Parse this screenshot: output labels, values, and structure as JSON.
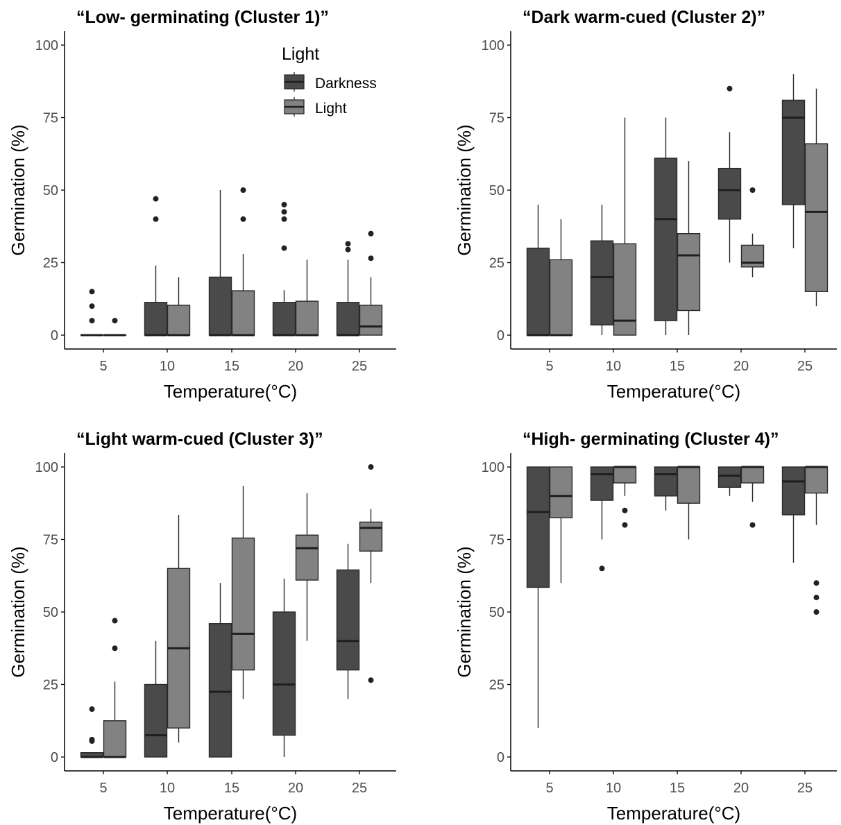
{
  "colors": {
    "darkness": "#4a4a4a",
    "light": "#828282",
    "box_stroke": "#2a2a2a",
    "axis": "#000000",
    "tick_label": "#4d4d4d",
    "text": "#000000"
  },
  "legend": {
    "title": "Light",
    "items": [
      {
        "label": "Darkness",
        "color_key": "darkness"
      },
      {
        "label": "Light",
        "color_key": "light"
      }
    ],
    "placement": "inside top-right of first panel"
  },
  "chart_data": [
    {
      "type": "boxplot",
      "title": "“Low- germinating (Cluster 1)”",
      "xlabel": "Temperature(°C)",
      "ylabel": "Germination (%)",
      "categories": [
        "5",
        "10",
        "15",
        "20",
        "25"
      ],
      "ylim": [
        0,
        100
      ],
      "yticks": [
        0,
        25,
        50,
        75,
        100
      ],
      "grid": false,
      "series": [
        {
          "name": "Darkness",
          "color_key": "darkness",
          "boxes": [
            {
              "whisker_low": 0,
              "q1": 0,
              "median": 0,
              "q3": 0,
              "whisker_high": 0,
              "outliers": [
                5,
                10,
                15
              ]
            },
            {
              "whisker_low": 0,
              "q1": 0,
              "median": 0,
              "q3": 11.3,
              "whisker_high": 24,
              "outliers": [
                40,
                47
              ]
            },
            {
              "whisker_low": 0,
              "q1": 0,
              "median": 0,
              "q3": 20,
              "whisker_high": 50,
              "outliers": []
            },
            {
              "whisker_low": 0,
              "q1": 0,
              "median": 0,
              "q3": 11.3,
              "whisker_high": 15.5,
              "outliers": [
                30,
                40,
                42.5,
                45
              ]
            },
            {
              "whisker_low": 0,
              "q1": 0,
              "median": 0,
              "q3": 11.3,
              "whisker_high": 26,
              "outliers": [
                29.5,
                31.5
              ]
            }
          ]
        },
        {
          "name": "Light",
          "color_key": "light",
          "boxes": [
            {
              "whisker_low": 0,
              "q1": 0,
              "median": 0,
              "q3": 0,
              "whisker_high": 0,
              "outliers": [
                5
              ]
            },
            {
              "whisker_low": 0,
              "q1": 0,
              "median": 0,
              "q3": 10.3,
              "whisker_high": 20,
              "outliers": []
            },
            {
              "whisker_low": 0,
              "q1": 0,
              "median": 0,
              "q3": 15.3,
              "whisker_high": 28,
              "outliers": [
                40,
                50
              ]
            },
            {
              "whisker_low": 0,
              "q1": 0,
              "median": 0,
              "q3": 11.7,
              "whisker_high": 26,
              "outliers": []
            },
            {
              "whisker_low": 0,
              "q1": 0,
              "median": 3,
              "q3": 10.3,
              "whisker_high": 20,
              "outliers": [
                26.5,
                35
              ]
            }
          ]
        }
      ]
    },
    {
      "type": "boxplot",
      "title": "“Dark warm-cued (Cluster 2)”",
      "xlabel": "Temperature(°C)",
      "ylabel": "Germination (%)",
      "categories": [
        "5",
        "10",
        "15",
        "20",
        "25"
      ],
      "ylim": [
        0,
        100
      ],
      "yticks": [
        0,
        25,
        50,
        75,
        100
      ],
      "grid": false,
      "series": [
        {
          "name": "Darkness",
          "color_key": "darkness",
          "boxes": [
            {
              "whisker_low": 0,
              "q1": 0,
              "median": 0,
              "q3": 30,
              "whisker_high": 45,
              "outliers": []
            },
            {
              "whisker_low": 0,
              "q1": 3.5,
              "median": 20,
              "q3": 32.5,
              "whisker_high": 45,
              "outliers": []
            },
            {
              "whisker_low": 0,
              "q1": 5,
              "median": 40,
              "q3": 61,
              "whisker_high": 75,
              "outliers": []
            },
            {
              "whisker_low": 25,
              "q1": 40,
              "median": 50,
              "q3": 57.5,
              "whisker_high": 70,
              "outliers": [
                85
              ]
            },
            {
              "whisker_low": 30,
              "q1": 45,
              "median": 75,
              "q3": 81,
              "whisker_high": 90,
              "outliers": []
            }
          ]
        },
        {
          "name": "Light",
          "color_key": "light",
          "boxes": [
            {
              "whisker_low": 0,
              "q1": 0,
              "median": 0,
              "q3": 26,
              "whisker_high": 40,
              "outliers": []
            },
            {
              "whisker_low": 0,
              "q1": 0,
              "median": 5,
              "q3": 31.5,
              "whisker_high": 75,
              "outliers": []
            },
            {
              "whisker_low": 0,
              "q1": 8.5,
              "median": 27.5,
              "q3": 35,
              "whisker_high": 60,
              "outliers": []
            },
            {
              "whisker_low": 20,
              "q1": 23.5,
              "median": 25,
              "q3": 31,
              "whisker_high": 35,
              "outliers": [
                50
              ]
            },
            {
              "whisker_low": 10,
              "q1": 15,
              "median": 42.5,
              "q3": 66,
              "whisker_high": 85,
              "outliers": []
            }
          ]
        }
      ]
    },
    {
      "type": "boxplot",
      "title": "“Light warm-cued (Cluster 3)”",
      "xlabel": "Temperature(°C)",
      "ylabel": "Germination (%)",
      "categories": [
        "5",
        "10",
        "15",
        "20",
        "25"
      ],
      "ylim": [
        0,
        100
      ],
      "yticks": [
        0,
        25,
        50,
        75,
        100
      ],
      "grid": false,
      "series": [
        {
          "name": "Darkness",
          "color_key": "darkness",
          "boxes": [
            {
              "whisker_low": 0,
              "q1": 0,
              "median": 0,
              "q3": 1.5,
              "whisker_high": 1.5,
              "outliers": [
                5.5,
                6,
                16.5
              ]
            },
            {
              "whisker_low": 0,
              "q1": 0,
              "median": 7.5,
              "q3": 25,
              "whisker_high": 40,
              "outliers": []
            },
            {
              "whisker_low": 0,
              "q1": 0,
              "median": 22.5,
              "q3": 46,
              "whisker_high": 60,
              "outliers": []
            },
            {
              "whisker_low": 0,
              "q1": 7.5,
              "median": 25,
              "q3": 50,
              "whisker_high": 61.5,
              "outliers": []
            },
            {
              "whisker_low": 20,
              "q1": 30,
              "median": 40,
              "q3": 64.5,
              "whisker_high": 73.5,
              "outliers": []
            }
          ]
        },
        {
          "name": "Light",
          "color_key": "light",
          "boxes": [
            {
              "whisker_low": 0,
              "q1": 0,
              "median": 0,
              "q3": 12.5,
              "whisker_high": 26,
              "outliers": [
                37.5,
                47
              ]
            },
            {
              "whisker_low": 5,
              "q1": 10,
              "median": 37.5,
              "q3": 65,
              "whisker_high": 83.5,
              "outliers": []
            },
            {
              "whisker_low": 20,
              "q1": 30,
              "median": 42.5,
              "q3": 75.5,
              "whisker_high": 93.5,
              "outliers": []
            },
            {
              "whisker_low": 40,
              "q1": 61,
              "median": 72,
              "q3": 76.5,
              "whisker_high": 91,
              "outliers": []
            },
            {
              "whisker_low": 60,
              "q1": 71,
              "median": 79,
              "q3": 81,
              "whisker_high": 85.5,
              "outliers": [
                26.5,
                100
              ]
            }
          ]
        }
      ]
    },
    {
      "type": "boxplot",
      "title": "“High- germinating (Cluster 4)”",
      "xlabel": "Temperature(°C)",
      "ylabel": "Germination (%)",
      "categories": [
        "5",
        "10",
        "15",
        "20",
        "25"
      ],
      "ylim": [
        0,
        100
      ],
      "yticks": [
        0,
        25,
        50,
        75,
        100
      ],
      "grid": false,
      "series": [
        {
          "name": "Darkness",
          "color_key": "darkness",
          "boxes": [
            {
              "whisker_low": 10,
              "q1": 58.5,
              "median": 84.5,
              "q3": 100,
              "whisker_high": 100,
              "outliers": []
            },
            {
              "whisker_low": 75,
              "q1": 88.5,
              "median": 97.5,
              "q3": 100,
              "whisker_high": 100,
              "outliers": [
                65
              ]
            },
            {
              "whisker_low": 85,
              "q1": 90,
              "median": 97.5,
              "q3": 100,
              "whisker_high": 100,
              "outliers": []
            },
            {
              "whisker_low": 90,
              "q1": 93,
              "median": 97,
              "q3": 100,
              "whisker_high": 100,
              "outliers": []
            },
            {
              "whisker_low": 67,
              "q1": 83.5,
              "median": 95,
              "q3": 100,
              "whisker_high": 100,
              "outliers": []
            }
          ]
        },
        {
          "name": "Light",
          "color_key": "light",
          "boxes": [
            {
              "whisker_low": 60,
              "q1": 82.5,
              "median": 90,
              "q3": 100,
              "whisker_high": 100,
              "outliers": []
            },
            {
              "whisker_low": 90,
              "q1": 94.5,
              "median": 100,
              "q3": 100,
              "whisker_high": 100,
              "outliers": [
                80,
                85
              ]
            },
            {
              "whisker_low": 75,
              "q1": 87.5,
              "median": 100,
              "q3": 100,
              "whisker_high": 100,
              "outliers": []
            },
            {
              "whisker_low": 88,
              "q1": 94.5,
              "median": 100,
              "q3": 100,
              "whisker_high": 100,
              "outliers": [
                80
              ]
            },
            {
              "whisker_low": 80,
              "q1": 91,
              "median": 100,
              "q3": 100,
              "whisker_high": 100,
              "outliers": [
                50,
                55,
                60
              ]
            }
          ]
        }
      ]
    }
  ]
}
